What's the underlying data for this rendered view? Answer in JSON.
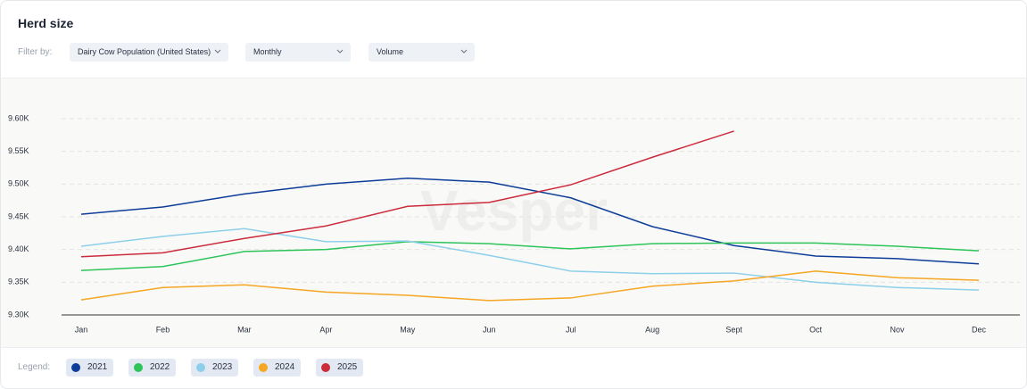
{
  "chart_data": {
    "type": "line",
    "title": "Herd size",
    "filter_label": "Filter by:",
    "filters": [
      "Dairy Cow Population (United States)",
      "Monthly",
      "Volume"
    ],
    "legend_label": "Legend:",
    "watermark": "Vesper",
    "categories": [
      "Jan",
      "Feb",
      "Mar",
      "Apr",
      "May",
      "Jun",
      "Jul",
      "Aug",
      "Sept",
      "Oct",
      "Nov",
      "Dec"
    ],
    "ylim": [
      9.3,
      9.6
    ],
    "yticks": [
      {
        "value": 9.3,
        "label": "9.30K"
      },
      {
        "value": 9.35,
        "label": "9.35K"
      },
      {
        "value": 9.4,
        "label": "9.40K"
      },
      {
        "value": 9.45,
        "label": "9.45K"
      },
      {
        "value": 9.5,
        "label": "9.50K"
      },
      {
        "value": 9.55,
        "label": "9.55K"
      },
      {
        "value": 9.6,
        "label": "9.60K"
      }
    ],
    "grid": true,
    "series": [
      {
        "name": "2021",
        "color": "#0d3c99",
        "values": [
          9.454,
          9.465,
          9.485,
          9.5,
          9.509,
          9.503,
          9.479,
          9.435,
          9.406,
          9.39,
          9.386,
          9.378
        ]
      },
      {
        "name": "2022",
        "color": "#2dc45a",
        "values": [
          9.368,
          9.374,
          9.397,
          9.4,
          9.412,
          9.409,
          9.401,
          9.409,
          9.41,
          9.41,
          9.405,
          9.398
        ]
      },
      {
        "name": "2023",
        "color": "#8dcfea",
        "values": [
          9.405,
          9.42,
          9.432,
          9.412,
          9.413,
          9.391,
          9.367,
          9.363,
          9.364,
          9.35,
          9.342,
          9.338
        ]
      },
      {
        "name": "2024",
        "color": "#f5a623",
        "values": [
          9.323,
          9.342,
          9.346,
          9.335,
          9.33,
          9.322,
          9.326,
          9.344,
          9.352,
          9.367,
          9.357,
          9.353
        ]
      },
      {
        "name": "2025",
        "color": "#cc2b3b",
        "values": [
          9.389,
          9.395,
          9.417,
          9.436,
          9.466,
          9.472,
          9.499,
          9.541,
          9.581,
          null,
          null,
          null
        ]
      }
    ]
  }
}
